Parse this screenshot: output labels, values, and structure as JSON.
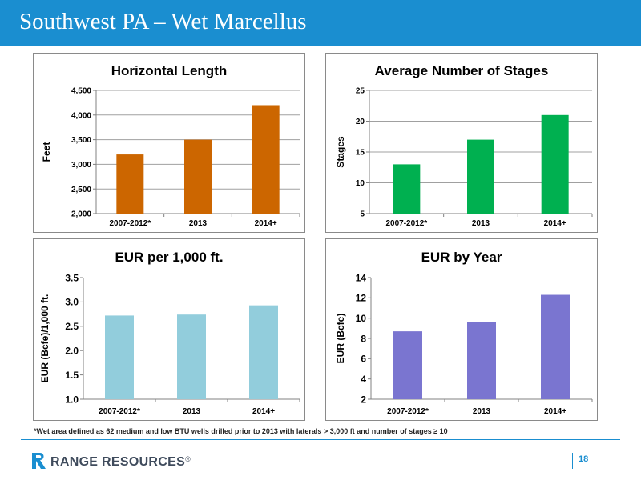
{
  "header": {
    "title": "Southwest PA – Wet Marcellus"
  },
  "footnote": "*Wet area defined as 62 medium and low BTU wells drilled prior to 2013 with laterals > 3,000 ft and number of stages ≥ 10",
  "logo": {
    "text": "RANGE RESOURCES",
    "mark": "®"
  },
  "page_number": "18",
  "chart_data": [
    {
      "id": "horizontal-length",
      "type": "bar",
      "title": "Horizontal Length",
      "xlabel": "",
      "ylabel": "Feet",
      "categories": [
        "2007-2012*",
        "2013",
        "2014+"
      ],
      "values": [
        3200,
        3500,
        4200
      ],
      "ylim": [
        2000,
        4500
      ],
      "yticks": [
        2000,
        2500,
        3000,
        3500,
        4000,
        4500
      ],
      "ytick_labels": [
        "2,000",
        "2,500",
        "3,000",
        "3,500",
        "4,000",
        "4,500"
      ],
      "grid": true,
      "color": "#cc6600"
    },
    {
      "id": "average-stages",
      "type": "bar",
      "title": "Average Number of Stages",
      "xlabel": "",
      "ylabel": "Stages",
      "categories": [
        "2007-2012*",
        "2013",
        "2014+"
      ],
      "values": [
        13,
        17,
        21
      ],
      "ylim": [
        5,
        25
      ],
      "yticks": [
        5,
        10,
        15,
        20,
        25
      ],
      "ytick_labels": [
        "5",
        "10",
        "15",
        "20",
        "25"
      ],
      "grid": true,
      "color": "#00b050"
    },
    {
      "id": "eur-per-1000ft",
      "type": "bar",
      "title": "EUR per 1,000 ft.",
      "xlabel": "",
      "ylabel": "EUR (Bcfe)/1,000 ft.",
      "categories": [
        "2007-2012*",
        "2013",
        "2014+"
      ],
      "values": [
        2.72,
        2.74,
        2.93
      ],
      "ylim": [
        1.0,
        3.5
      ],
      "yticks": [
        1.0,
        1.5,
        2.0,
        2.5,
        3.0,
        3.5
      ],
      "ytick_labels": [
        "1.0",
        "1.5",
        "2.0",
        "2.5",
        "3.0",
        "3.5"
      ],
      "grid": false,
      "color": "#92cddc"
    },
    {
      "id": "eur-by-year",
      "type": "bar",
      "title": "EUR by Year",
      "xlabel": "",
      "ylabel": "EUR (Bcfe)",
      "categories": [
        "2007-2012*",
        "2013",
        "2014+"
      ],
      "values": [
        8.7,
        9.6,
        12.3
      ],
      "ylim": [
        2,
        14
      ],
      "yticks": [
        2,
        4,
        6,
        8,
        10,
        12,
        14
      ],
      "ytick_labels": [
        "2",
        "4",
        "6",
        "8",
        "10",
        "12",
        "14"
      ],
      "grid": false,
      "color": "#7a75d0"
    }
  ]
}
